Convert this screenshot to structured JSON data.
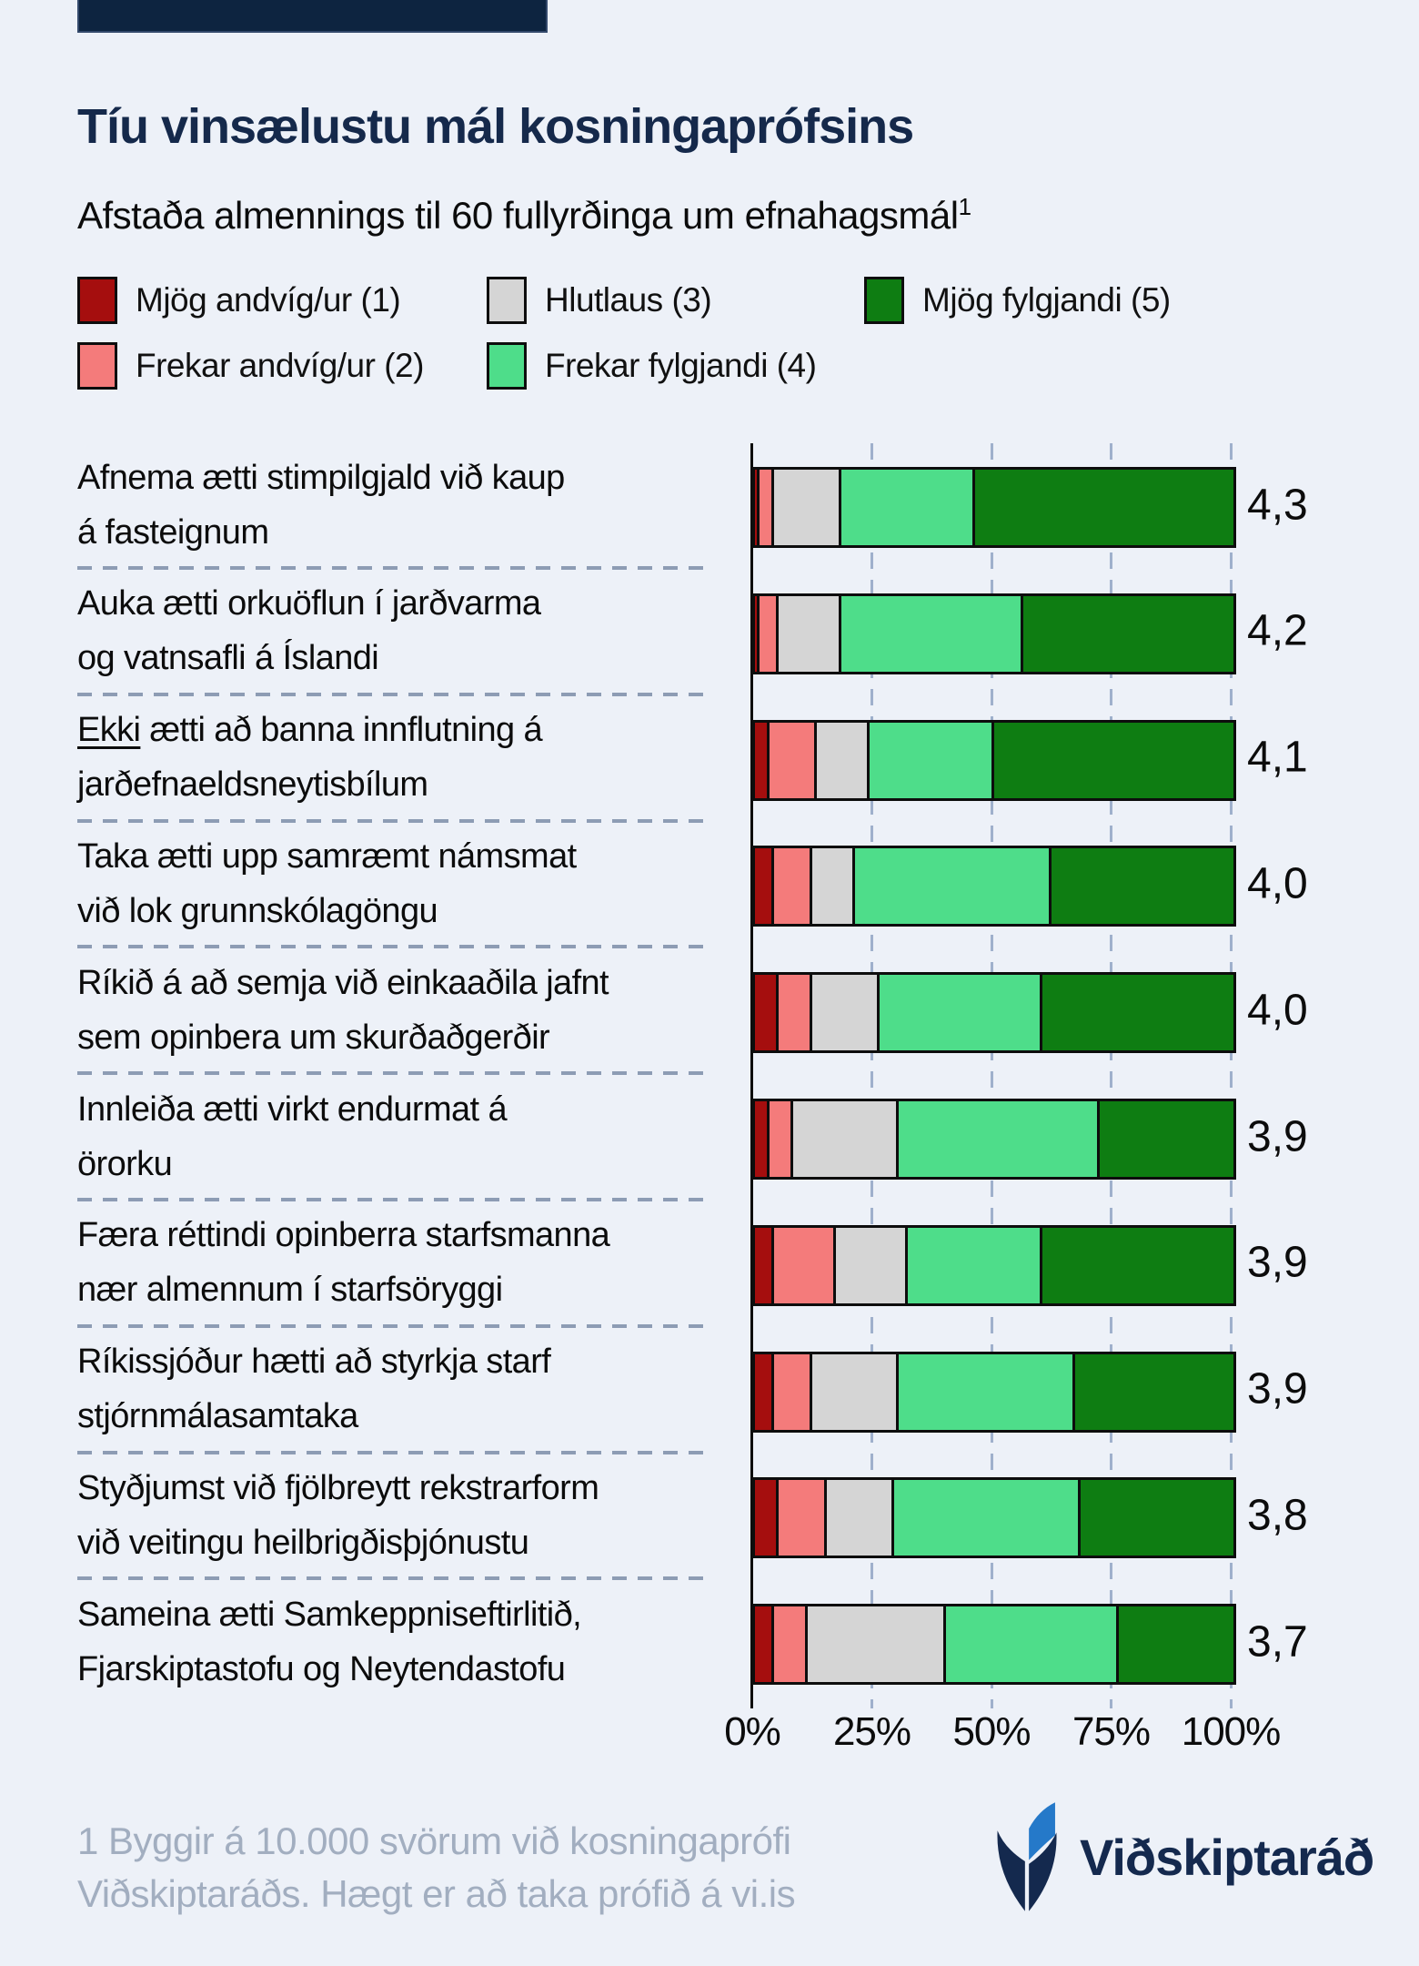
{
  "page": {
    "background_color": "#edf1f8",
    "topbar_color": "#0d2440"
  },
  "header": {
    "title": "Tíu vinsælustu mál kosningaprófsins",
    "subtitle": "Afstaða almennings til 60 fullyrðinga um efnahagsmál",
    "subtitle_footnote_marker": "1"
  },
  "legend": {
    "items": [
      {
        "label": "Mjög andvíg/ur (1)",
        "color": "#a50e0e"
      },
      {
        "label": "Frekar andvíg/ur (2)",
        "color": "#f47b7b"
      },
      {
        "label": "Hlutlaus (3)",
        "color": "#d5d5d5"
      },
      {
        "label": "Frekar fylgjandi (4)",
        "color": "#4edd8a"
      },
      {
        "label": "Mjög fylgjandi (5)",
        "color": "#0e7d12"
      }
    ]
  },
  "chart_data": {
    "type": "bar",
    "orientation": "horizontal_stacked",
    "unit": "%",
    "xlim": [
      0,
      100
    ],
    "x_axis": {
      "tick_labels": [
        "0%",
        "25%",
        "50%",
        "75%",
        "100%"
      ],
      "tick_values": [
        0,
        25,
        50,
        75,
        100
      ],
      "gridlines": "dashed"
    },
    "series_labels": [
      "Mjög andvíg/ur (1)",
      "Frekar andvíg/ur (2)",
      "Hlutlaus (3)",
      "Frekar fylgjandi (4)",
      "Mjög fylgjandi (5)"
    ],
    "series_colors": [
      "#a50e0e",
      "#f47b7b",
      "#d5d5d5",
      "#4edd8a",
      "#0e7d12"
    ],
    "rows": [
      {
        "label_lines": [
          "Afnema ætti stimpilgjald við kaup",
          "á fasteignum"
        ],
        "underline_word": "",
        "values": [
          1,
          3,
          14,
          28,
          54
        ],
        "score": "4,3"
      },
      {
        "label_lines": [
          "Auka ætti orkuöflun í jarðvarma",
          "og vatnsafli á Íslandi"
        ],
        "underline_word": "",
        "values": [
          1,
          4,
          13,
          38,
          44
        ],
        "score": "4,2"
      },
      {
        "label_lines": [
          "Ekki ætti að banna innflutning á",
          "jarðefnaeldsneytisbílum"
        ],
        "underline_word": "Ekki",
        "values": [
          3,
          10,
          11,
          26,
          50
        ],
        "score": "4,1"
      },
      {
        "label_lines": [
          "Taka ætti upp samræmt námsmat",
          "við lok grunnskólagöngu"
        ],
        "underline_word": "",
        "values": [
          4,
          8,
          9,
          41,
          38
        ],
        "score": "4,0"
      },
      {
        "label_lines": [
          "Ríkið á að semja við einkaaðila jafnt",
          "sem opinbera um skurðaðgerðir"
        ],
        "underline_word": "",
        "values": [
          5,
          7,
          14,
          34,
          40
        ],
        "score": "4,0"
      },
      {
        "label_lines": [
          "Innleiða ætti virkt endurmat á",
          "örorku"
        ],
        "underline_word": "",
        "values": [
          3,
          5,
          22,
          42,
          28
        ],
        "score": "3,9"
      },
      {
        "label_lines": [
          "Færa réttindi opinberra starfsmanna",
          "nær almennum í starfsöryggi"
        ],
        "underline_word": "",
        "values": [
          4,
          13,
          15,
          28,
          40
        ],
        "score": "3,9"
      },
      {
        "label_lines": [
          "Ríkissjóður hætti að styrkja starf",
          "stjórnmálasamtaka"
        ],
        "underline_word": "",
        "values": [
          4,
          8,
          18,
          37,
          33
        ],
        "score": "3,9"
      },
      {
        "label_lines": [
          "Styðjumst við fjölbreytt rekstrarform",
          "við veitingu heilbrigðisþjónustu"
        ],
        "underline_word": "",
        "values": [
          5,
          10,
          14,
          39,
          32
        ],
        "score": "3,8"
      },
      {
        "label_lines": [
          "Sameina ætti Samkeppniseftirlitið,",
          "Fjarskiptastofu og Neytendastofu"
        ],
        "underline_word": "",
        "values": [
          4,
          7,
          29,
          36,
          24
        ],
        "score": "3,7"
      }
    ]
  },
  "footnote": {
    "line1": "1 Byggir á 10.000 svörum við kosningaprófi",
    "line2": "Viðskiptaráðs. Hægt er að taka prófið á vi.is"
  },
  "logo": {
    "text": "Viðskiptaráð",
    "icon": "vidskiptarad-leaf-logo",
    "navy": "#14294e",
    "blue": "#2579c9"
  }
}
